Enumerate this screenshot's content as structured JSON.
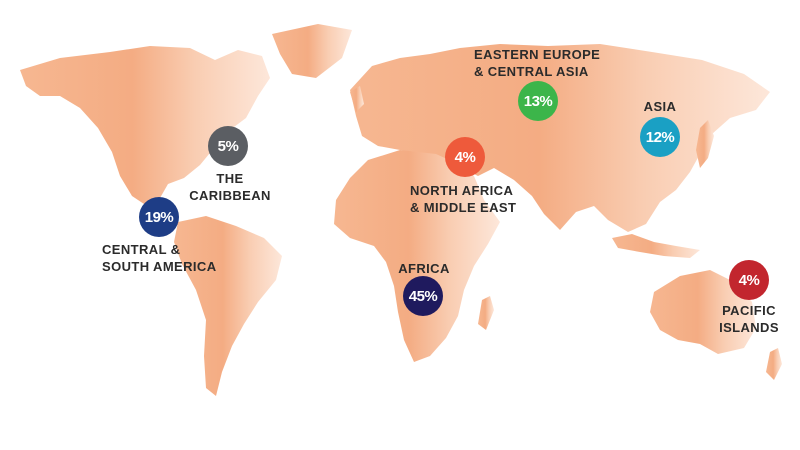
{
  "colors": {
    "land_dark": "#f2a57a",
    "land_light": "#fde6d8",
    "text": "#2b2b2b"
  },
  "regions": [
    {
      "id": "caribbean",
      "value": "5%",
      "label_lines": [
        "THE",
        "CARIBBEAN"
      ],
      "color": "#5b5e63"
    },
    {
      "id": "central-south-america",
      "value": "19%",
      "label_lines": [
        "CENTRAL &",
        "SOUTH AMERICA"
      ],
      "color": "#1e3d86"
    },
    {
      "id": "africa",
      "value": "45%",
      "label_lines": [
        "AFRICA"
      ],
      "color": "#1f1a5e"
    },
    {
      "id": "north-africa-middle-east",
      "value": "4%",
      "label_lines": [
        "NORTH AFRICA",
        "& MIDDLE EAST"
      ],
      "color": "#ee5a3b"
    },
    {
      "id": "eastern-europe-central-asia",
      "value": "13%",
      "label_lines": [
        "EASTERN EUROPE",
        "& CENTRAL ASIA"
      ],
      "color": "#3cb54a"
    },
    {
      "id": "asia",
      "value": "12%",
      "label_lines": [
        "ASIA"
      ],
      "color": "#1aa0c4"
    },
    {
      "id": "pacific-islands",
      "value": "4%",
      "label_lines": [
        "PACIFIC",
        "ISLANDS"
      ],
      "color": "#c2262e"
    }
  ]
}
